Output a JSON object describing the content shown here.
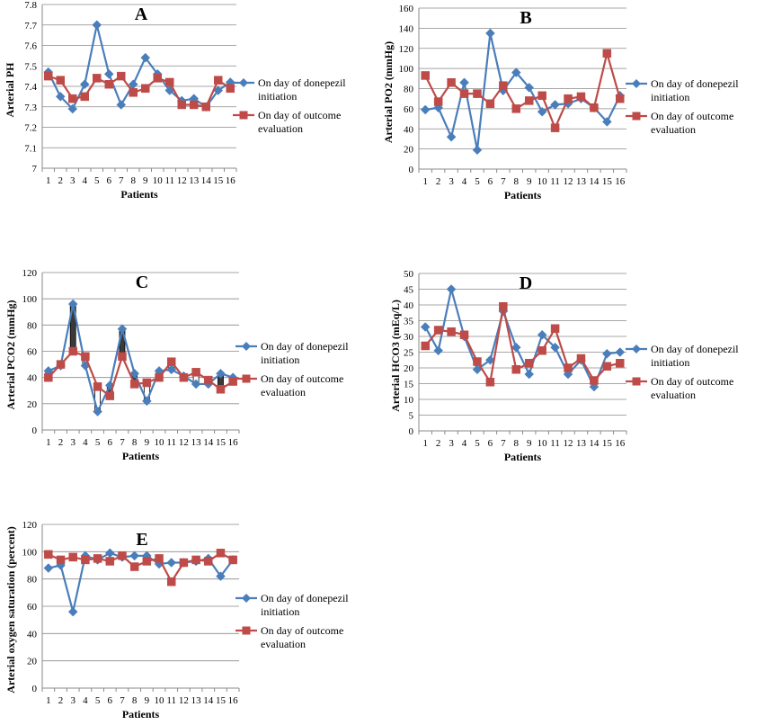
{
  "colors": {
    "initiation": "#4a7ebb",
    "outcome": "#be4b48",
    "bar_fill": "#3a3a3a"
  },
  "legend": {
    "initiation": [
      "On day of donepezil",
      "initiation"
    ],
    "outcome": [
      "On day of outcome",
      "evaluation"
    ]
  },
  "chart_data": [
    {
      "type": "line",
      "title": "A",
      "xlabel": "Patients",
      "ylabel": "Arterial PH",
      "categories": [
        "1",
        "2",
        "3",
        "4",
        "5",
        "6",
        "7",
        "8",
        "9",
        "10",
        "11",
        "12",
        "13",
        "14",
        "15",
        "16"
      ],
      "ylim": [
        7,
        7.8
      ],
      "yticks": [
        "7",
        "7.1",
        "7.2",
        "7.3",
        "7.4",
        "7.5",
        "7.6",
        "7.7",
        "7.8"
      ],
      "series": [
        {
          "key": "initiation",
          "values": [
            7.47,
            7.35,
            7.29,
            7.41,
            7.7,
            7.46,
            7.31,
            7.41,
            7.54,
            7.46,
            7.38,
            7.33,
            7.34,
            7.3,
            7.38,
            7.42
          ]
        },
        {
          "key": "outcome",
          "values": [
            7.45,
            7.43,
            7.34,
            7.35,
            7.44,
            7.41,
            7.45,
            7.37,
            7.39,
            7.44,
            7.42,
            7.31,
            7.31,
            7.3,
            7.43,
            7.39
          ]
        }
      ]
    },
    {
      "type": "line",
      "title": "B",
      "xlabel": "Patients",
      "ylabel": "Arterial PO2 (mmHg)",
      "categories": [
        "1",
        "2",
        "3",
        "4",
        "5",
        "6",
        "7",
        "8",
        "9",
        "10",
        "11",
        "12",
        "13",
        "14",
        "15",
        "16"
      ],
      "ylim": [
        0,
        160
      ],
      "yticks": [
        "0",
        "20",
        "40",
        "60",
        "80",
        "100",
        "120",
        "140",
        "160"
      ],
      "series": [
        {
          "key": "initiation",
          "values": [
            59,
            61,
            32,
            86,
            19,
            135,
            78,
            96,
            81,
            57,
            64,
            65,
            70,
            61,
            47,
            73
          ]
        },
        {
          "key": "outcome",
          "values": [
            93,
            67,
            86,
            75,
            75,
            65,
            83,
            60,
            68,
            73,
            41,
            70,
            72,
            61,
            115,
            70
          ]
        }
      ]
    },
    {
      "type": "line",
      "title": "C",
      "xlabel": "Patients",
      "ylabel": "Arterial PCO2 (mmHg)",
      "categories": [
        "1",
        "2",
        "3",
        "4",
        "5",
        "6",
        "7",
        "8",
        "9",
        "10",
        "11",
        "12",
        "13",
        "14",
        "15",
        "16"
      ],
      "ylim": [
        0,
        120
      ],
      "yticks": [
        "0",
        "20",
        "40",
        "60",
        "80",
        "100",
        "120"
      ],
      "series": [
        {
          "key": "initiation",
          "values": [
            45,
            49,
            96,
            49,
            14,
            34,
            77,
            43,
            22,
            45,
            46,
            41,
            35,
            35,
            43,
            40
          ]
        },
        {
          "key": "outcome",
          "values": [
            40,
            50,
            60,
            56,
            33,
            26,
            56,
            35,
            36,
            40,
            52,
            40,
            44,
            38,
            31,
            37
          ]
        }
      ]
    },
    {
      "type": "line",
      "title": "D",
      "xlabel": "Patients",
      "ylabel": "Arterial HCO3 (mEq/L)",
      "categories": [
        "1",
        "2",
        "3",
        "4",
        "5",
        "6",
        "7",
        "8",
        "9",
        "10",
        "11",
        "12",
        "13",
        "14",
        "15",
        "16"
      ],
      "ylim": [
        0,
        50
      ],
      "yticks": [
        "0",
        "5",
        "10",
        "15",
        "20",
        "25",
        "30",
        "35",
        "40",
        "45",
        "50"
      ],
      "series": [
        {
          "key": "initiation",
          "values": [
            33,
            25.5,
            45,
            30,
            19.5,
            22.5,
            38,
            26.5,
            18,
            30.5,
            26.5,
            18,
            22.5,
            14,
            24.5,
            25
          ]
        },
        {
          "key": "outcome",
          "values": [
            27,
            32,
            31.5,
            30.5,
            22,
            15.5,
            39.5,
            19.5,
            21.5,
            25.5,
            32.5,
            20,
            23,
            16,
            20.5,
            21.5
          ]
        }
      ]
    },
    {
      "type": "line",
      "title": "E",
      "xlabel": "Patients",
      "ylabel": "Arterial oxygen saturation (percent)",
      "categories": [
        "1",
        "2",
        "3",
        "4",
        "5",
        "6",
        "7",
        "8",
        "9",
        "10",
        "11",
        "12",
        "13",
        "14",
        "15",
        "16"
      ],
      "ylim": [
        0,
        120
      ],
      "yticks": [
        "0",
        "20",
        "40",
        "60",
        "80",
        "100",
        "120"
      ],
      "series": [
        {
          "key": "initiation",
          "values": [
            88,
            90,
            56,
            97,
            94,
            99,
            96,
            97,
            97,
            91,
            92,
            92,
            93,
            95,
            82,
            94
          ]
        },
        {
          "key": "outcome",
          "values": [
            98,
            94,
            96,
            94,
            95,
            93,
            97,
            89,
            93,
            95,
            78,
            92,
            94,
            93,
            99,
            94
          ]
        }
      ]
    }
  ]
}
